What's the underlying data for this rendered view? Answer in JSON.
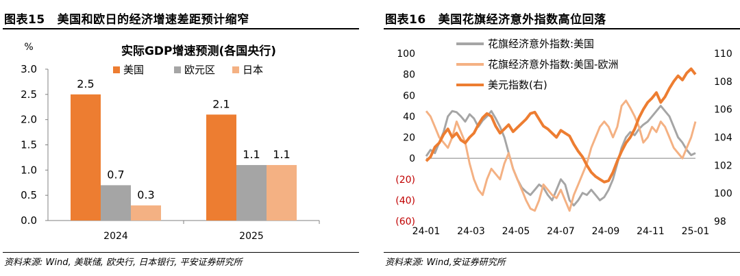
{
  "left": {
    "figure_no": "图表15",
    "title": "美国和欧日的经济增速差距预计缩窄",
    "source": "资料来源: Wind, 美联储, 欧央行, 日本银行, 平安证券研究所"
  },
  "right": {
    "figure_no": "图表16",
    "title": "美国花旗经济意外指数高位回落",
    "source": "资料来源: Wind,安证券研究所"
  },
  "chart_data": [
    {
      "type": "bar",
      "title": "实际GDP增速预测(各国央行)",
      "unit_label": "%",
      "categories": [
        "2024",
        "2025"
      ],
      "series": [
        {
          "name": "美国",
          "values": [
            2.5,
            2.1
          ],
          "color": "#ED7D31"
        },
        {
          "name": "欧元区",
          "values": [
            0.7,
            1.1
          ],
          "color": "#A5A5A5"
        },
        {
          "name": "日本",
          "values": [
            0.3,
            1.1
          ],
          "color": "#F4B183"
        }
      ],
      "data_labels": [
        [
          "2.5",
          "2.1"
        ],
        [
          "0.7",
          "1.1"
        ],
        [
          "0.3",
          "1.1"
        ]
      ],
      "ylim": [
        0,
        3.0
      ],
      "yticks": [
        "0.0",
        "0.5",
        "1.0",
        "1.5",
        "2.0",
        "2.5",
        "3.0"
      ],
      "ytick_values": [
        0,
        0.5,
        1.0,
        1.5,
        2.0,
        2.5,
        3.0
      ],
      "legend": "top",
      "grid": false
    },
    {
      "type": "line",
      "x_ticks": [
        "24-01",
        "24-03",
        "24-05",
        "24-07",
        "24-09",
        "24-11",
        "25-01"
      ],
      "ylim_left": [
        -60,
        100
      ],
      "ylim_right": [
        98,
        110
      ],
      "yticks_left": [
        "(60)",
        "(40)",
        "(20)",
        "0",
        "20",
        "40",
        "60",
        "80",
        "100"
      ],
      "yticks_left_values": [
        -60,
        -40,
        -20,
        0,
        20,
        40,
        60,
        80,
        100
      ],
      "yticks_left_colors": [
        "#C00000",
        "#C00000",
        "#C00000",
        "#000000",
        "#000000",
        "#000000",
        "#000000",
        "#000000",
        "#000000"
      ],
      "yticks_right": [
        "98",
        "100",
        "102",
        "104",
        "106",
        "108",
        "110"
      ],
      "yticks_right_values": [
        98,
        100,
        102,
        104,
        106,
        108,
        110
      ],
      "legend": "top-left",
      "grid": false,
      "series": [
        {
          "name": "花旗经济意外指数:美国",
          "axis": "left",
          "color": "#A5A5A5",
          "values": [
            2,
            8,
            5,
            15,
            25,
            40,
            45,
            44,
            40,
            35,
            42,
            38,
            30,
            36,
            40,
            45,
            38,
            30,
            20,
            5,
            -10,
            -20,
            -28,
            -32,
            -35,
            -30,
            -25,
            -28,
            -35,
            -40,
            -30,
            -20,
            -25,
            -40,
            -45,
            -40,
            -33,
            -35,
            -30,
            -35,
            -40,
            -37,
            -30,
            -20,
            -5,
            10,
            20,
            25,
            22,
            28,
            32,
            35,
            40,
            45,
            50,
            45,
            40,
            30,
            20,
            15,
            8,
            3,
            5
          ]
        },
        {
          "name": "花旗经济意外指数:美国-欧洲",
          "axis": "left",
          "color": "#F4B183",
          "values": [
            45,
            40,
            30,
            20,
            15,
            10,
            20,
            35,
            25,
            15,
            -5,
            -20,
            -30,
            -35,
            -20,
            -10,
            -15,
            -20,
            -5,
            5,
            -10,
            -20,
            -30,
            -40,
            -48,
            -50,
            -40,
            -25,
            -30,
            -35,
            -38,
            -30,
            -40,
            -50,
            -35,
            -25,
            -15,
            -5,
            10,
            20,
            30,
            35,
            30,
            20,
            30,
            50,
            55,
            48,
            40,
            30,
            15,
            20,
            30,
            25,
            35,
            30,
            20,
            10,
            5,
            0,
            10,
            20,
            35
          ]
        },
        {
          "name": "美元指数(右)",
          "axis": "right",
          "color": "#ED7D31",
          "values": [
            102.3,
            102.6,
            103.3,
            103.6,
            104.2,
            104.6,
            104.0,
            104.3,
            103.8,
            103.6,
            104.0,
            104.3,
            104.9,
            105.4,
            105.7,
            105.5,
            104.8,
            104.3,
            104.6,
            104.9,
            104.4,
            104.7,
            105.0,
            105.3,
            105.7,
            105.8,
            105.3,
            104.8,
            104.6,
            104.3,
            104.0,
            104.5,
            104.3,
            104.1,
            103.5,
            103.0,
            102.6,
            102.0,
            101.5,
            101.2,
            101.0,
            100.8,
            100.9,
            101.5,
            102.3,
            103.0,
            103.6,
            104.0,
            104.6,
            105.4,
            106.0,
            106.5,
            106.8,
            107.2,
            106.5,
            106.9,
            107.5,
            108.0,
            108.4,
            108.1,
            108.6,
            108.9,
            108.5
          ]
        }
      ]
    }
  ]
}
